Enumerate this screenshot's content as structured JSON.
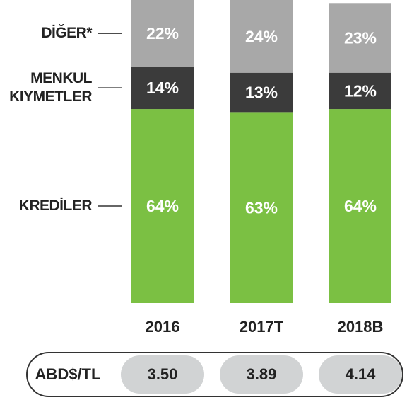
{
  "chart_data": {
    "type": "stacked_bar",
    "categories": [
      "2016",
      "2017T",
      "2018B"
    ],
    "series": [
      {
        "name": "KREDİLER",
        "color": "#7bc043",
        "values": [
          64,
          63,
          64
        ],
        "value_labels": [
          "64%",
          "63%",
          "64%"
        ]
      },
      {
        "name": "MENKUL KIYMETLER",
        "color": "#3b3b3b",
        "values": [
          14,
          13,
          12
        ],
        "value_labels": [
          "14%",
          "13%",
          "12%"
        ]
      },
      {
        "name": "DİĞER*",
        "color": "#a8a8a8",
        "values": [
          22,
          24,
          23
        ],
        "value_labels": [
          "22%",
          "24%",
          "23%"
        ]
      }
    ],
    "ylim": [
      0,
      100
    ]
  },
  "exchange_rate": {
    "label": "ABD$/TL",
    "values": [
      "3.50",
      "3.89",
      "4.14"
    ]
  }
}
